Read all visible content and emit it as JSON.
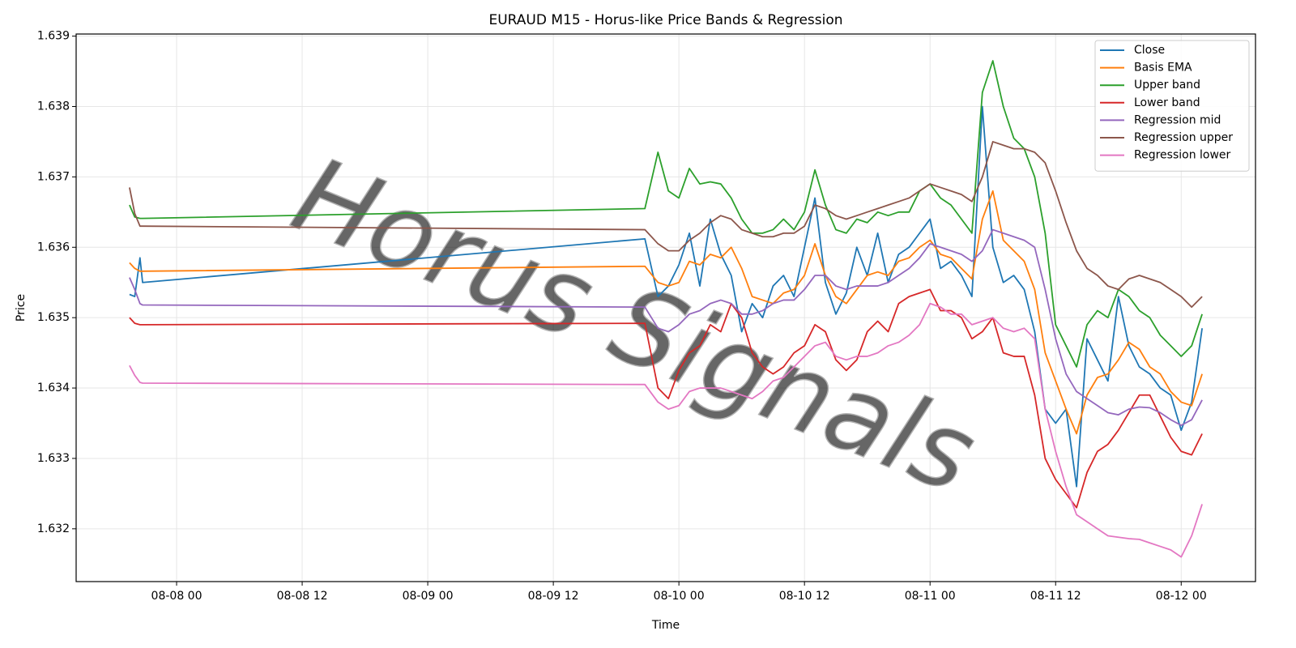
{
  "chart_data": {
    "type": "line",
    "title": "EURAUD M15 - Horus-like Price Bands & Regression",
    "x_label": "Time",
    "y_label": "Price",
    "watermark": "Horus Signals",
    "grid": true,
    "legend": "upper right",
    "x": [
      "08-07 19:30",
      "08-07 20:00",
      "08-07 20:30",
      "08-07 20:45",
      "08-09 20:45",
      "08-09 22:00",
      "08-09 23:00",
      "08-10 00:00",
      "08-10 01:00",
      "08-10 02:00",
      "08-10 03:00",
      "08-10 04:00",
      "08-10 05:00",
      "08-10 06:00",
      "08-10 07:00",
      "08-10 08:00",
      "08-10 09:00",
      "08-10 10:00",
      "08-10 11:00",
      "08-10 12:00",
      "08-10 13:00",
      "08-10 14:00",
      "08-10 15:00",
      "08-10 16:00",
      "08-10 17:00",
      "08-10 18:00",
      "08-10 19:00",
      "08-10 20:00",
      "08-10 21:00",
      "08-10 22:00",
      "08-10 23:00",
      "08-11 00:00",
      "08-11 01:00",
      "08-11 02:00",
      "08-11 03:00",
      "08-11 04:00",
      "08-11 05:00",
      "08-11 06:00",
      "08-11 07:00",
      "08-11 08:00",
      "08-11 09:00",
      "08-11 10:00",
      "08-11 11:00",
      "08-11 12:00",
      "08-11 13:00",
      "08-11 14:00",
      "08-11 15:00",
      "08-11 16:00",
      "08-11 17:00",
      "08-11 18:00",
      "08-11 19:00",
      "08-11 20:00",
      "08-11 21:00",
      "08-11 22:00",
      "08-11 23:00",
      "08-12 00:00",
      "08-12 01:00",
      "08-12 02:00"
    ],
    "xlim": [
      "08-07 14:24",
      "08-12 07:06"
    ],
    "xticks": [
      {
        "value": "08-08 00:00",
        "label": "08-08 00"
      },
      {
        "value": "08-08 12:00",
        "label": "08-08 12"
      },
      {
        "value": "08-09 00:00",
        "label": "08-09 00"
      },
      {
        "value": "08-09 12:00",
        "label": "08-09 12"
      },
      {
        "value": "08-10 00:00",
        "label": "08-10 00"
      },
      {
        "value": "08-10 12:00",
        "label": "08-10 12"
      },
      {
        "value": "08-11 00:00",
        "label": "08-11 00"
      },
      {
        "value": "08-11 12:00",
        "label": "08-11 12"
      },
      {
        "value": "08-12 00:00",
        "label": "08-12 00"
      }
    ],
    "ylim": [
      1.63125,
      1.63903
    ],
    "yticks": [
      1.632,
      1.633,
      1.634,
      1.635,
      1.636,
      1.637,
      1.638,
      1.639
    ],
    "series": [
      {
        "name": "Close",
        "color": "#1f77b4",
        "values": [
          1.63533,
          1.6353,
          1.63585,
          1.6355,
          1.63612,
          1.6353,
          1.63545,
          1.63575,
          1.6362,
          1.63545,
          1.6364,
          1.6359,
          1.6356,
          1.6348,
          1.6352,
          1.635,
          1.63545,
          1.6356,
          1.6353,
          1.636,
          1.6367,
          1.6355,
          1.63505,
          1.63535,
          1.636,
          1.6356,
          1.6362,
          1.6355,
          1.6359,
          1.636,
          1.6362,
          1.6364,
          1.6357,
          1.6358,
          1.6356,
          1.6353,
          1.638,
          1.636,
          1.6355,
          1.6356,
          1.6354,
          1.6348,
          1.6337,
          1.6335,
          1.6337,
          1.6326,
          1.6347,
          1.6344,
          1.6341,
          1.6353,
          1.6346,
          1.6343,
          1.6342,
          1.634,
          1.6339,
          1.6334,
          1.6338,
          1.63485
        ]
      },
      {
        "name": "Basis EMA",
        "color": "#ff7f0e",
        "values": [
          1.63578,
          1.6357,
          1.63566,
          1.63566,
          1.63573,
          1.6355,
          1.63545,
          1.6355,
          1.6358,
          1.63575,
          1.6359,
          1.63585,
          1.636,
          1.6357,
          1.6353,
          1.63525,
          1.6352,
          1.63535,
          1.6354,
          1.6356,
          1.63605,
          1.6356,
          1.6353,
          1.6352,
          1.6354,
          1.6356,
          1.63565,
          1.6356,
          1.6358,
          1.63585,
          1.636,
          1.6361,
          1.6359,
          1.63585,
          1.6357,
          1.63555,
          1.6364,
          1.6368,
          1.6361,
          1.63595,
          1.6358,
          1.6354,
          1.6345,
          1.6341,
          1.6337,
          1.63335,
          1.6339,
          1.63415,
          1.6342,
          1.6344,
          1.63465,
          1.63455,
          1.6343,
          1.6342,
          1.63395,
          1.6338,
          1.63375,
          1.6342
        ]
      },
      {
        "name": "Upper band",
        "color": "#2ca02c",
        "values": [
          1.6366,
          1.63643,
          1.63641,
          1.63641,
          1.63655,
          1.63735,
          1.6368,
          1.6367,
          1.63712,
          1.6369,
          1.63693,
          1.6369,
          1.6367,
          1.6364,
          1.6362,
          1.6362,
          1.63625,
          1.6364,
          1.63625,
          1.6365,
          1.6371,
          1.6366,
          1.63625,
          1.6362,
          1.6364,
          1.63635,
          1.6365,
          1.63645,
          1.6365,
          1.6365,
          1.6368,
          1.6369,
          1.6367,
          1.6366,
          1.6364,
          1.6362,
          1.6382,
          1.63865,
          1.638,
          1.63755,
          1.6374,
          1.637,
          1.6362,
          1.6349,
          1.6346,
          1.6343,
          1.6349,
          1.6351,
          1.635,
          1.6354,
          1.6353,
          1.6351,
          1.635,
          1.63475,
          1.6346,
          1.63445,
          1.6346,
          1.63505
        ]
      },
      {
        "name": "Lower band",
        "color": "#d62728",
        "values": [
          1.635,
          1.63492,
          1.6349,
          1.6349,
          1.63492,
          1.634,
          1.63385,
          1.63425,
          1.6345,
          1.6346,
          1.6349,
          1.6348,
          1.6352,
          1.635,
          1.6345,
          1.6343,
          1.6342,
          1.6343,
          1.6345,
          1.6346,
          1.6349,
          1.6348,
          1.6344,
          1.63425,
          1.6344,
          1.6348,
          1.63495,
          1.6348,
          1.6352,
          1.6353,
          1.63535,
          1.6354,
          1.6351,
          1.6351,
          1.635,
          1.6347,
          1.6348,
          1.635,
          1.6345,
          1.63445,
          1.63445,
          1.6339,
          1.633,
          1.6327,
          1.6325,
          1.6323,
          1.6328,
          1.6331,
          1.6332,
          1.6334,
          1.63365,
          1.6339,
          1.6339,
          1.6336,
          1.6333,
          1.6331,
          1.63305,
          1.63335
        ]
      },
      {
        "name": "Regression mid",
        "color": "#9467bd",
        "values": [
          1.63557,
          1.6354,
          1.6352,
          1.63518,
          1.63515,
          1.63485,
          1.6348,
          1.6349,
          1.63505,
          1.6351,
          1.6352,
          1.63525,
          1.6352,
          1.63505,
          1.63505,
          1.6351,
          1.6352,
          1.63525,
          1.63525,
          1.6354,
          1.6356,
          1.6356,
          1.63545,
          1.6354,
          1.63545,
          1.63545,
          1.63545,
          1.6355,
          1.6356,
          1.6357,
          1.63585,
          1.63605,
          1.636,
          1.63595,
          1.6359,
          1.6358,
          1.63595,
          1.63625,
          1.6362,
          1.63615,
          1.6361,
          1.636,
          1.6354,
          1.6347,
          1.6342,
          1.63395,
          1.63385,
          1.63375,
          1.63365,
          1.63362,
          1.6337,
          1.63373,
          1.63372,
          1.63365,
          1.63355,
          1.63347,
          1.63355,
          1.63383
        ]
      },
      {
        "name": "Regression upper",
        "color": "#8c564b",
        "values": [
          1.63685,
          1.63648,
          1.6363,
          1.6363,
          1.63625,
          1.63605,
          1.63595,
          1.63595,
          1.6361,
          1.6362,
          1.63635,
          1.63645,
          1.6364,
          1.63625,
          1.6362,
          1.63615,
          1.63615,
          1.6362,
          1.6362,
          1.6363,
          1.6366,
          1.63655,
          1.63645,
          1.6364,
          1.63645,
          1.6365,
          1.63655,
          1.6366,
          1.63665,
          1.6367,
          1.6368,
          1.6369,
          1.63685,
          1.6368,
          1.63675,
          1.63665,
          1.637,
          1.6375,
          1.63745,
          1.6374,
          1.6374,
          1.63735,
          1.6372,
          1.6368,
          1.63635,
          1.63595,
          1.6357,
          1.6356,
          1.63545,
          1.6354,
          1.63555,
          1.6356,
          1.63555,
          1.6355,
          1.6354,
          1.6353,
          1.63515,
          1.6353
        ]
      },
      {
        "name": "Regression lower",
        "color": "#e377c2",
        "values": [
          1.63432,
          1.63418,
          1.63408,
          1.63407,
          1.63405,
          1.6338,
          1.6337,
          1.63375,
          1.63395,
          1.634,
          1.634,
          1.634,
          1.63395,
          1.6339,
          1.63385,
          1.63395,
          1.6341,
          1.63415,
          1.6343,
          1.63445,
          1.6346,
          1.63465,
          1.63445,
          1.6344,
          1.63445,
          1.63445,
          1.6345,
          1.6346,
          1.63465,
          1.63475,
          1.6349,
          1.6352,
          1.63515,
          1.63505,
          1.63505,
          1.6349,
          1.63495,
          1.635,
          1.63485,
          1.6348,
          1.63485,
          1.6347,
          1.6337,
          1.6331,
          1.6326,
          1.6322,
          1.6321,
          1.632,
          1.6319,
          1.63188,
          1.63186,
          1.63185,
          1.6318,
          1.63175,
          1.6317,
          1.6316,
          1.6319,
          1.63235
        ]
      }
    ]
  }
}
